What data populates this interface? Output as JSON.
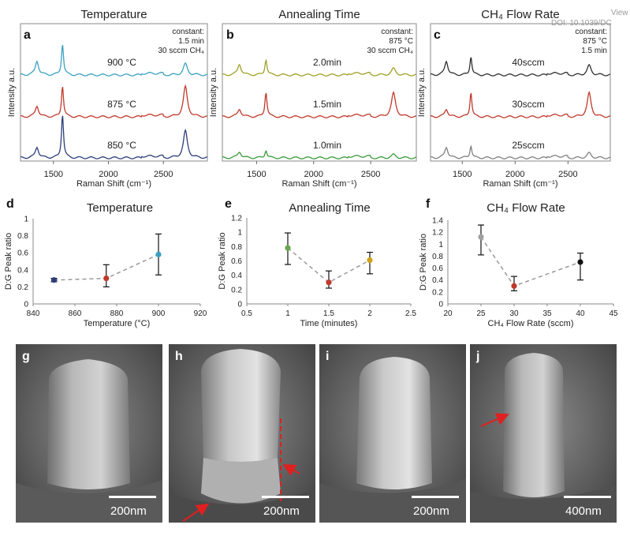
{
  "corner": {
    "line1": "View",
    "line2": "DOI: 10.1039/DC"
  },
  "raman_panels": [
    {
      "letter": "a",
      "title": "Temperature",
      "xlabel": "Raman Shift (cm⁻¹)",
      "ylabel": "Intensity a.u.",
      "xticks": [
        "1500",
        "2000",
        "2500"
      ],
      "constant": [
        "constant:",
        "1.5 min",
        "30 sccm CH₄"
      ],
      "spectra": [
        {
          "label": "900 °C",
          "color": "#3aa0c0",
          "d_height": 0.45,
          "g_height": 1.0,
          "twod_height": 0.35
        },
        {
          "label": "875 °C",
          "color": "#c0392b",
          "d_height": 0.35,
          "g_height": 1.0,
          "twod_height": 0.95
        },
        {
          "label": "850 °C",
          "color": "#2c3e7a",
          "d_height": 0.35,
          "g_height": 1.4,
          "twod_height": 0.85
        }
      ]
    },
    {
      "letter": "b",
      "title": "Annealing Time",
      "xlabel": "Raman Shift (cm⁻¹)",
      "ylabel": "Intensity a.u.",
      "xticks": [
        "1500",
        "2000",
        "2500"
      ],
      "constant": [
        "constant:",
        "875 °C",
        "30 sccm CH₄"
      ],
      "spectra": [
        {
          "label": "2.0min",
          "color": "#a0a028",
          "d_height": 0.35,
          "g_height": 0.5,
          "twod_height": 0.2
        },
        {
          "label": "1.5min",
          "color": "#c0392b",
          "d_height": 0.25,
          "g_height": 0.8,
          "twod_height": 0.75
        },
        {
          "label": "1.0min",
          "color": "#3a9a3a",
          "d_height": 0.2,
          "g_height": 0.25,
          "twod_height": 0.1
        }
      ]
    },
    {
      "letter": "c",
      "title": "CH₄ Flow Rate",
      "xlabel": "Raman Shift (cm⁻¹)",
      "ylabel": "Intensity a.u.",
      "xticks": [
        "1500",
        "2000",
        "2500"
      ],
      "constant": [
        "constant:",
        "875 °C",
        "1.5 min"
      ],
      "spectra": [
        {
          "label": "40sccm",
          "color": "#303030",
          "d_height": 0.45,
          "g_height": 0.6,
          "twod_height": 0.3
        },
        {
          "label": "30sccm",
          "color": "#c0392b",
          "d_height": 0.25,
          "g_height": 0.8,
          "twod_height": 0.75
        },
        {
          "label": "25sccm",
          "color": "#808080",
          "d_height": 0.35,
          "g_height": 0.4,
          "twod_height": 0.15
        }
      ]
    }
  ],
  "chart_data": [
    {
      "type": "scatter",
      "letter": "d",
      "title": "Temperature",
      "xlabel": "Temperature (°C)",
      "ylabel": "D:G Peak ratio",
      "xlim": [
        840,
        920
      ],
      "ylim": [
        0,
        1
      ],
      "xticks": [
        840,
        860,
        880,
        900,
        920
      ],
      "yticks": [
        0,
        0.2,
        0.4,
        0.6,
        0.8,
        1
      ],
      "points": [
        {
          "x": 850,
          "y": 0.28,
          "err_low": 0.02,
          "err_high": 0.02,
          "color": "#2c3e7a"
        },
        {
          "x": 875,
          "y": 0.3,
          "err_low": 0.1,
          "err_high": 0.16,
          "color": "#c0392b"
        },
        {
          "x": 900,
          "y": 0.58,
          "err_low": 0.24,
          "err_high": 0.24,
          "color": "#3aa0c0"
        }
      ]
    },
    {
      "type": "scatter",
      "letter": "e",
      "title": "Annealing Time",
      "xlabel": "Time (minutes)",
      "ylabel": "D:G Peak ratio",
      "xlim": [
        0.5,
        2.5
      ],
      "ylim": [
        0,
        1.2
      ],
      "xticks": [
        0.5,
        1,
        1.5,
        2,
        2.5
      ],
      "yticks": [
        0,
        0.2,
        0.4,
        0.6,
        0.8,
        1,
        1.2
      ],
      "points": [
        {
          "x": 1,
          "y": 0.78,
          "err_low": 0.23,
          "err_high": 0.21,
          "color": "#6aa84f"
        },
        {
          "x": 1.5,
          "y": 0.3,
          "err_low": 0.08,
          "err_high": 0.16,
          "color": "#c0392b"
        },
        {
          "x": 2,
          "y": 0.61,
          "err_low": 0.19,
          "err_high": 0.11,
          "color": "#d4a017"
        }
      ]
    },
    {
      "type": "scatter",
      "letter": "f",
      "title": "CH₄ Flow Rate",
      "xlabel": "CH₄ Flow Rate (sccm)",
      "ylabel": "D:G Peak ratio",
      "xlim": [
        20,
        45
      ],
      "ylim": [
        0,
        1.4
      ],
      "xticks": [
        20,
        25,
        30,
        35,
        40,
        45
      ],
      "yticks": [
        0,
        0.2,
        0.4,
        0.6,
        0.8,
        1,
        1.2,
        1.4
      ],
      "points": [
        {
          "x": 25,
          "y": 1.12,
          "err_low": 0.3,
          "err_high": 0.2,
          "color": "#a0a0a0"
        },
        {
          "x": 30,
          "y": 0.3,
          "err_low": 0.08,
          "err_high": 0.16,
          "color": "#c0392b"
        },
        {
          "x": 40,
          "y": 0.7,
          "err_low": 0.3,
          "err_high": 0.15,
          "color": "#111111"
        }
      ]
    }
  ],
  "sem_panels": [
    {
      "letter": "g",
      "scale": "200nm"
    },
    {
      "letter": "h",
      "scale": "200nm"
    },
    {
      "letter": "i",
      "scale": "200nm"
    },
    {
      "letter": "j",
      "scale": "400nm"
    }
  ]
}
